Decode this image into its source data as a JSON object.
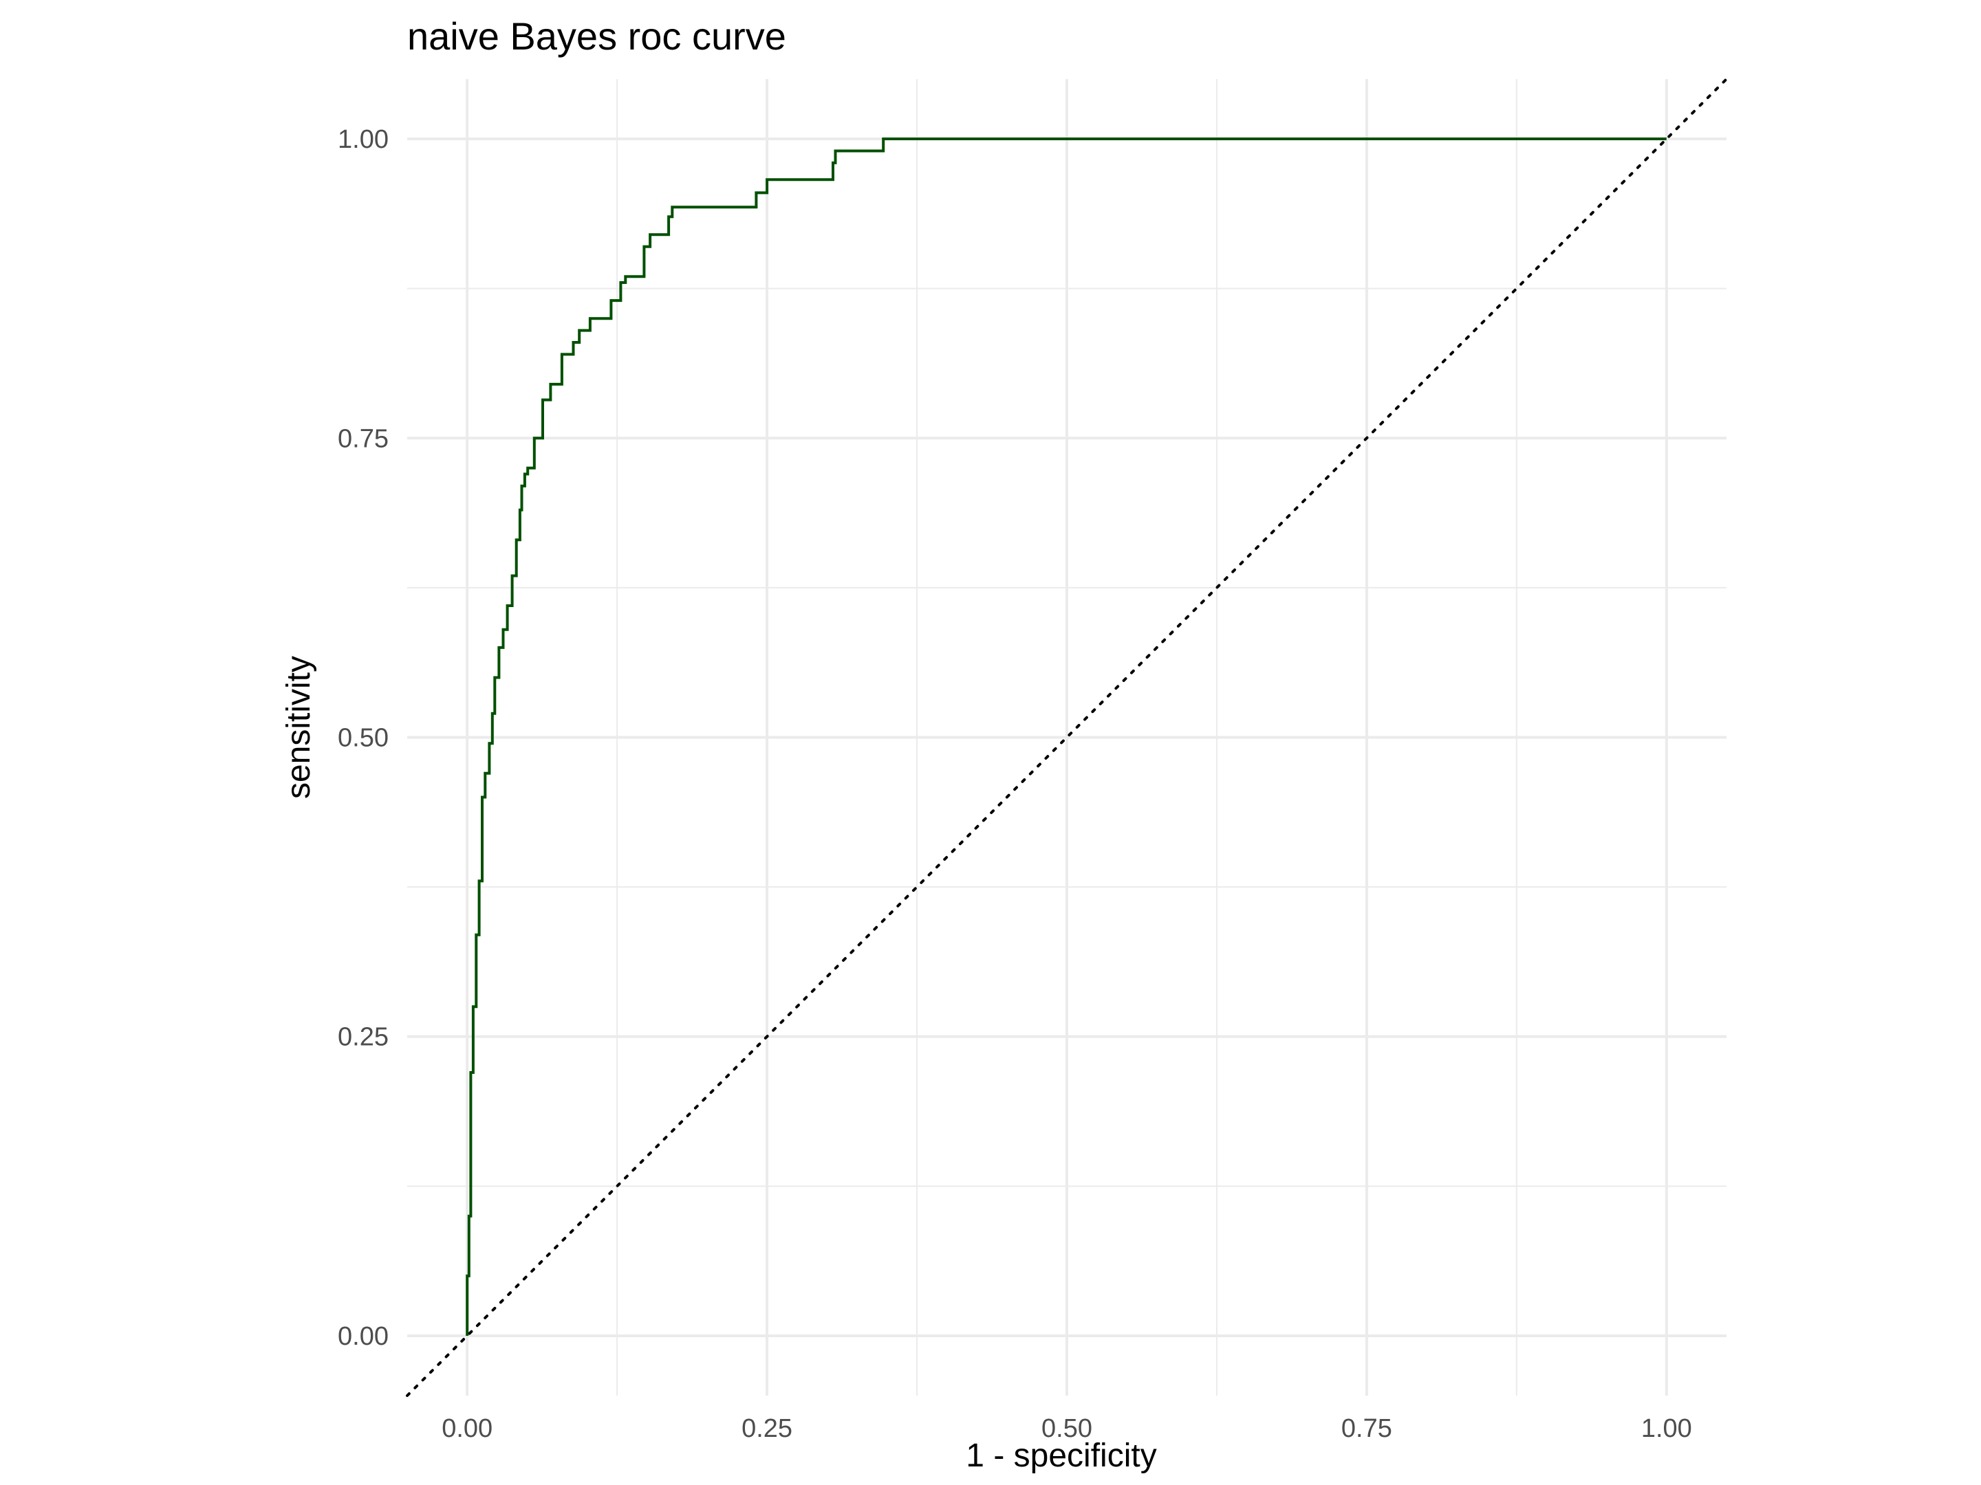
{
  "chart_data": {
    "type": "line",
    "title": "naive Bayes roc curve",
    "xlabel": "1 - specificity",
    "ylabel": "sensitivity",
    "xlim": [
      -0.05,
      1.05
    ],
    "ylim": [
      -0.05,
      1.05
    ],
    "x_ticks": [
      0.0,
      0.25,
      0.5,
      0.75,
      1.0
    ],
    "x_tick_labels": [
      "0.00",
      "0.25",
      "0.50",
      "0.75",
      "1.00"
    ],
    "y_ticks": [
      0.0,
      0.25,
      0.5,
      0.75,
      1.0
    ],
    "y_tick_labels": [
      "0.00",
      "0.25",
      "0.50",
      "0.75",
      "1.00"
    ],
    "grid": true,
    "legend": "none",
    "colors": {
      "roc_line": "#005000",
      "reference_line": "#000000",
      "grid": "#ebebeb"
    },
    "series": [
      {
        "style": "solid",
        "x": [
          0.0,
          0.0,
          0.0015,
          0.0015,
          0.003,
          0.003,
          0.005,
          0.005,
          0.0075,
          0.0075,
          0.01,
          0.01,
          0.0125,
          0.0125,
          0.015,
          0.015,
          0.0185,
          0.0185,
          0.021,
          0.021,
          0.023,
          0.023,
          0.0265,
          0.0265,
          0.03,
          0.03,
          0.0335,
          0.0335,
          0.0375,
          0.0375,
          0.041,
          0.041,
          0.044,
          0.044,
          0.0455,
          0.0455,
          0.048,
          0.048,
          0.0505,
          0.0505,
          0.052,
          0.052,
          0.056,
          0.056,
          0.063,
          0.063,
          0.0695,
          0.0695,
          0.079,
          0.079,
          0.0885,
          0.0885,
          0.0935,
          0.0935,
          0.1025,
          0.1025,
          0.12,
          0.12,
          0.128,
          0.128,
          0.132,
          0.132,
          0.1475,
          0.1475,
          0.1525,
          0.1525,
          0.168,
          0.168,
          0.171,
          0.171,
          0.241,
          0.241,
          0.25,
          0.25,
          0.305,
          0.305,
          0.307,
          0.307,
          0.347,
          0.347,
          1.0
        ],
        "y": [
          0.0,
          0.05,
          0.05,
          0.1,
          0.1,
          0.22,
          0.22,
          0.275,
          0.275,
          0.335,
          0.335,
          0.38,
          0.38,
          0.45,
          0.45,
          0.47,
          0.47,
          0.495,
          0.495,
          0.52,
          0.52,
          0.55,
          0.55,
          0.575,
          0.575,
          0.59,
          0.59,
          0.61,
          0.61,
          0.635,
          0.635,
          0.665,
          0.665,
          0.69,
          0.69,
          0.71,
          0.71,
          0.72,
          0.72,
          0.725,
          0.725,
          0.725,
          0.725,
          0.75,
          0.75,
          0.782,
          0.782,
          0.795,
          0.795,
          0.82,
          0.82,
          0.83,
          0.83,
          0.84,
          0.84,
          0.85,
          0.85,
          0.865,
          0.865,
          0.88,
          0.88,
          0.885,
          0.885,
          0.91,
          0.91,
          0.92,
          0.92,
          0.935,
          0.935,
          0.943,
          0.943,
          0.955,
          0.955,
          0.966,
          0.966,
          0.98,
          0.98,
          0.99,
          0.99,
          1.0,
          1.0
        ]
      },
      {
        "style": "dotted",
        "x": [
          -0.05,
          1.05
        ],
        "y": [
          -0.05,
          1.05
        ]
      }
    ]
  }
}
